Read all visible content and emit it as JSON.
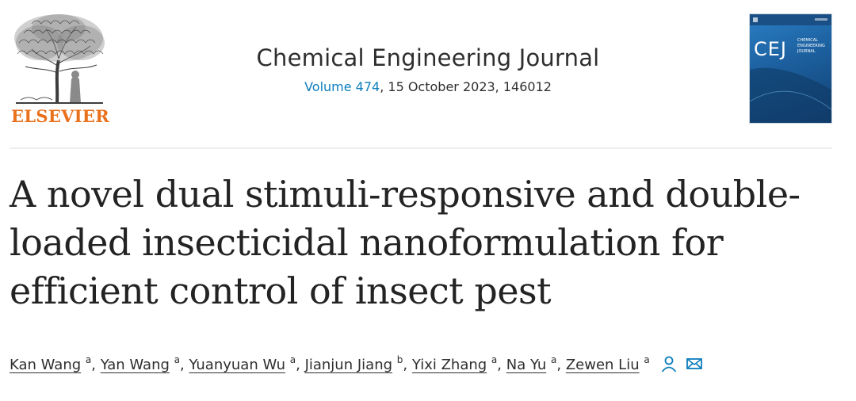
{
  "publisher": {
    "name": "ELSEVIER",
    "accent": "#e9711c"
  },
  "journal": {
    "title": "Chemical Engineering Journal",
    "volume_label": "Volume 474",
    "issue_rest": ", 15 October 2023, 146012",
    "cover_abbrev": "CEJ",
    "cover_subtitle": [
      "CHEMICAL",
      "ENGINEERING",
      "JOURNAL"
    ]
  },
  "article": {
    "title_lines": [
      "A novel dual stimuli-responsive and double-",
      "loaded insecticidal nanoformulation for",
      "efficient control of insect pest"
    ]
  },
  "authors": [
    {
      "name": "Kan Wang",
      "aff": "a"
    },
    {
      "name": "Yan Wang",
      "aff": "a"
    },
    {
      "name": "Yuanyuan Wu",
      "aff": "a"
    },
    {
      "name": "Jianjun Jiang",
      "aff": "b"
    },
    {
      "name": "Yixi Zhang",
      "aff": "a"
    },
    {
      "name": "Na Yu",
      "aff": "a"
    },
    {
      "name": "Zewen Liu",
      "aff": "a"
    }
  ],
  "icons": {
    "person": "person-icon",
    "email": "email-icon",
    "link_color": "#0c7dbb"
  }
}
